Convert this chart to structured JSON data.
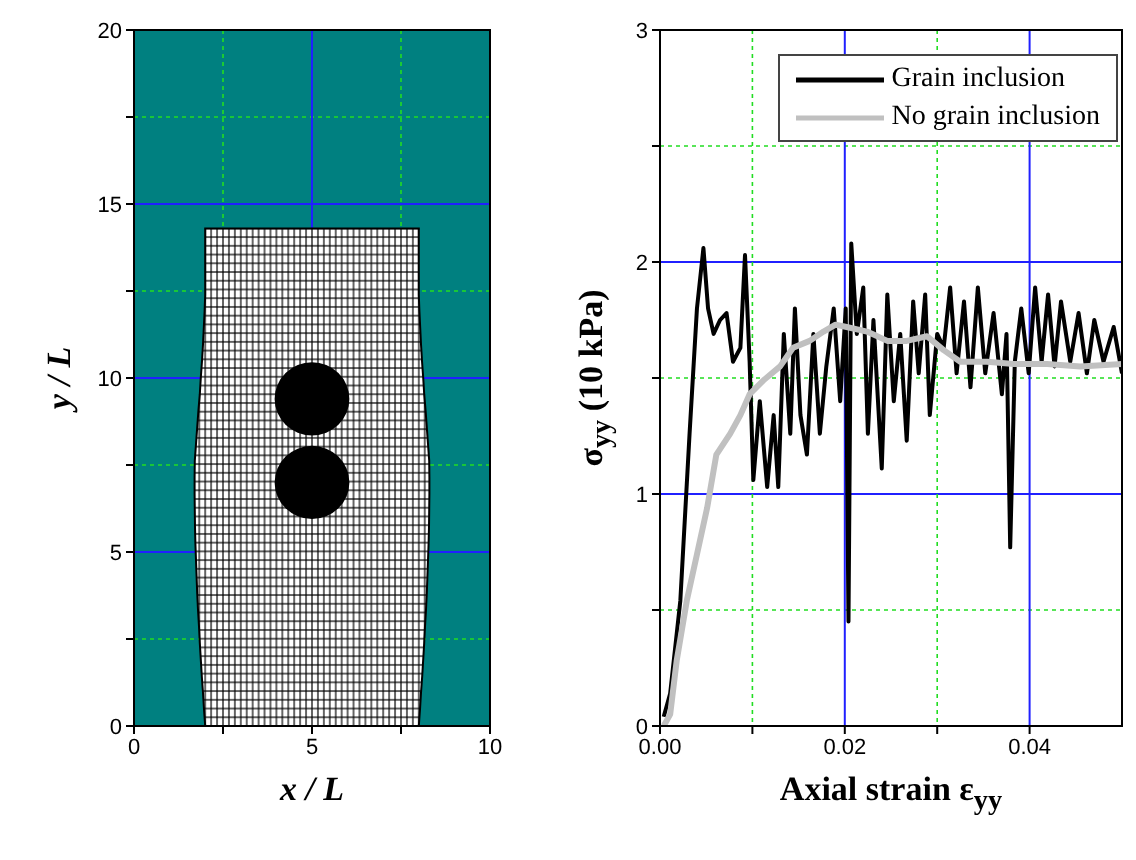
{
  "chart_data": [
    {
      "type": "scatter",
      "xlabel": "x / L",
      "ylabel": "y / L",
      "xlim": [
        0,
        10
      ],
      "ylim": [
        0,
        20
      ],
      "xticks": [
        0,
        {
          "value": 2.5,
          "label": null
        },
        5,
        {
          "value": 7.5,
          "label": null
        },
        10
      ],
      "yticks": [
        0,
        {
          "value": 2.5,
          "label": null
        },
        5,
        {
          "value": 7.5,
          "label": null
        },
        10,
        {
          "value": 12.5,
          "label": null
        },
        15,
        {
          "value": 17.5,
          "label": null
        },
        20
      ],
      "grid": true
    },
    {
      "type": "line",
      "xlabel": "Axial strain  ε$_{yy}$",
      "ylabel": "σ$_{yy}$   (10 kPa)",
      "xlim": [
        0,
        0.05
      ],
      "ylim": [
        0,
        3
      ],
      "xticks": [
        {
          "value": 0,
          "label": "0.00"
        },
        {
          "value": 0.01,
          "label": null
        },
        {
          "value": 0.02,
          "label": "0.02"
        },
        {
          "value": 0.03,
          "label": null
        },
        {
          "value": 0.04,
          "label": "0.04"
        }
      ],
      "yticks": [
        0,
        {
          "value": 0.5,
          "label": null
        },
        1,
        {
          "value": 1.5,
          "label": null
        },
        2,
        {
          "value": 2.5,
          "label": null
        },
        3
      ],
      "grid": true,
      "legend": "top right",
      "line_style": "solid",
      "marker": "none",
      "series": [
        {
          "name": "Grain inclusion",
          "color": "#000000",
          "x": [
            0.0004,
            0.0011,
            0.0022,
            0.0032,
            0.004,
            0.0047,
            0.0052,
            0.0058,
            0.0065,
            0.0072,
            0.0079,
            0.0087,
            0.0092,
            0.0097,
            0.0101,
            0.0108,
            0.0116,
            0.0123,
            0.0128,
            0.0134,
            0.0141,
            0.0146,
            0.0152,
            0.0159,
            0.0166,
            0.0173,
            0.018,
            0.0188,
            0.0195,
            0.0201,
            0.0204,
            0.0207,
            0.0213,
            0.022,
            0.0225,
            0.0231,
            0.024,
            0.0246,
            0.0253,
            0.026,
            0.0267,
            0.0274,
            0.028,
            0.0287,
            0.0292,
            0.03,
            0.0307,
            0.0314,
            0.0321,
            0.0329,
            0.0336,
            0.0344,
            0.0352,
            0.0361,
            0.037,
            0.0375,
            0.0379,
            0.0384,
            0.0391,
            0.0399,
            0.0406,
            0.0413,
            0.042,
            0.0427,
            0.0434,
            0.0444,
            0.0453,
            0.0462,
            0.047,
            0.048,
            0.0491,
            0.05
          ],
          "values": [
            0.04,
            0.14,
            0.54,
            1.26,
            1.8,
            2.06,
            1.8,
            1.69,
            1.75,
            1.78,
            1.57,
            1.63,
            2.03,
            1.57,
            1.06,
            1.4,
            1.03,
            1.34,
            1.03,
            1.69,
            1.26,
            1.8,
            1.34,
            1.17,
            1.69,
            1.26,
            1.55,
            1.8,
            1.4,
            1.8,
            0.45,
            2.08,
            1.69,
            1.89,
            1.26,
            1.75,
            1.11,
            1.86,
            1.4,
            1.69,
            1.23,
            1.83,
            1.52,
            1.86,
            1.34,
            1.69,
            1.63,
            1.89,
            1.52,
            1.83,
            1.46,
            1.89,
            1.52,
            1.78,
            1.43,
            1.69,
            0.77,
            1.57,
            1.8,
            1.52,
            1.89,
            1.57,
            1.86,
            1.55,
            1.83,
            1.57,
            1.78,
            1.52,
            1.75,
            1.57,
            1.72,
            1.52
          ]
        },
        {
          "name": "No grain inclusion",
          "color": "#c0c0c0",
          "x": [
            0.0004,
            0.0011,
            0.0018,
            0.0029,
            0.004,
            0.0051,
            0.0061,
            0.0076,
            0.0087,
            0.0097,
            0.0112,
            0.013,
            0.0144,
            0.0162,
            0.0177,
            0.019,
            0.0202,
            0.0224,
            0.0246,
            0.0267,
            0.0289,
            0.0307,
            0.0325,
            0.0354,
            0.0383,
            0.0419,
            0.0455,
            0.05
          ],
          "values": [
            0,
            0.05,
            0.28,
            0.54,
            0.74,
            0.94,
            1.17,
            1.26,
            1.34,
            1.43,
            1.49,
            1.55,
            1.63,
            1.66,
            1.7,
            1.73,
            1.72,
            1.7,
            1.66,
            1.66,
            1.68,
            1.62,
            1.57,
            1.57,
            1.56,
            1.56,
            1.55,
            1.56
          ]
        }
      ]
    }
  ]
}
